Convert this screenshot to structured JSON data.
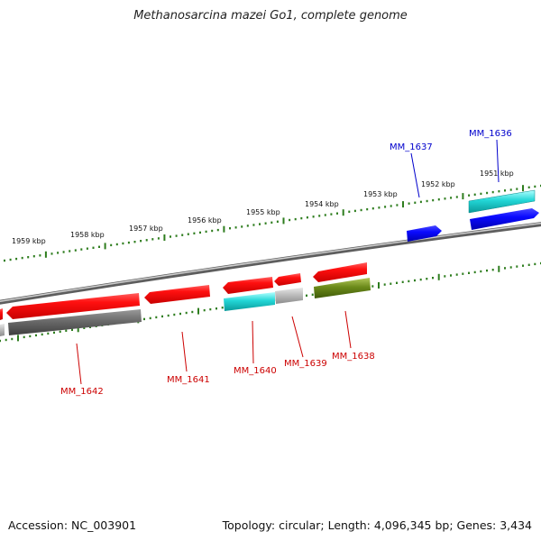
{
  "title": "Methanosarcina mazei Go1, complete genome",
  "footer": {
    "accession": "Accession: NC_003901",
    "summary": "Topology: circular; Length: 4,096,345 bp; Genes: 3,434"
  },
  "colors": {
    "backbone": "#8a8a8a",
    "tick": "#2e7d1e",
    "forward_label": "#0000cc",
    "reverse_label": "#cc0000"
  },
  "scale_labels": [
    "1951 kbp",
    "1952 kbp",
    "1953 kbp",
    "1954 kbp",
    "1955 kbp",
    "1956 kbp",
    "1957 kbp",
    "1958 kbp",
    "1959 kbp"
  ],
  "gene_labels": [
    {
      "id": "MM_1636",
      "strand": "forward"
    },
    {
      "id": "MM_1637",
      "strand": "forward"
    },
    {
      "id": "MM_1638",
      "strand": "reverse"
    },
    {
      "id": "MM_1639",
      "strand": "reverse"
    },
    {
      "id": "MM_1640",
      "strand": "reverse"
    },
    {
      "id": "MM_1641",
      "strand": "reverse"
    },
    {
      "id": "MM_1642",
      "strand": "reverse"
    }
  ]
}
